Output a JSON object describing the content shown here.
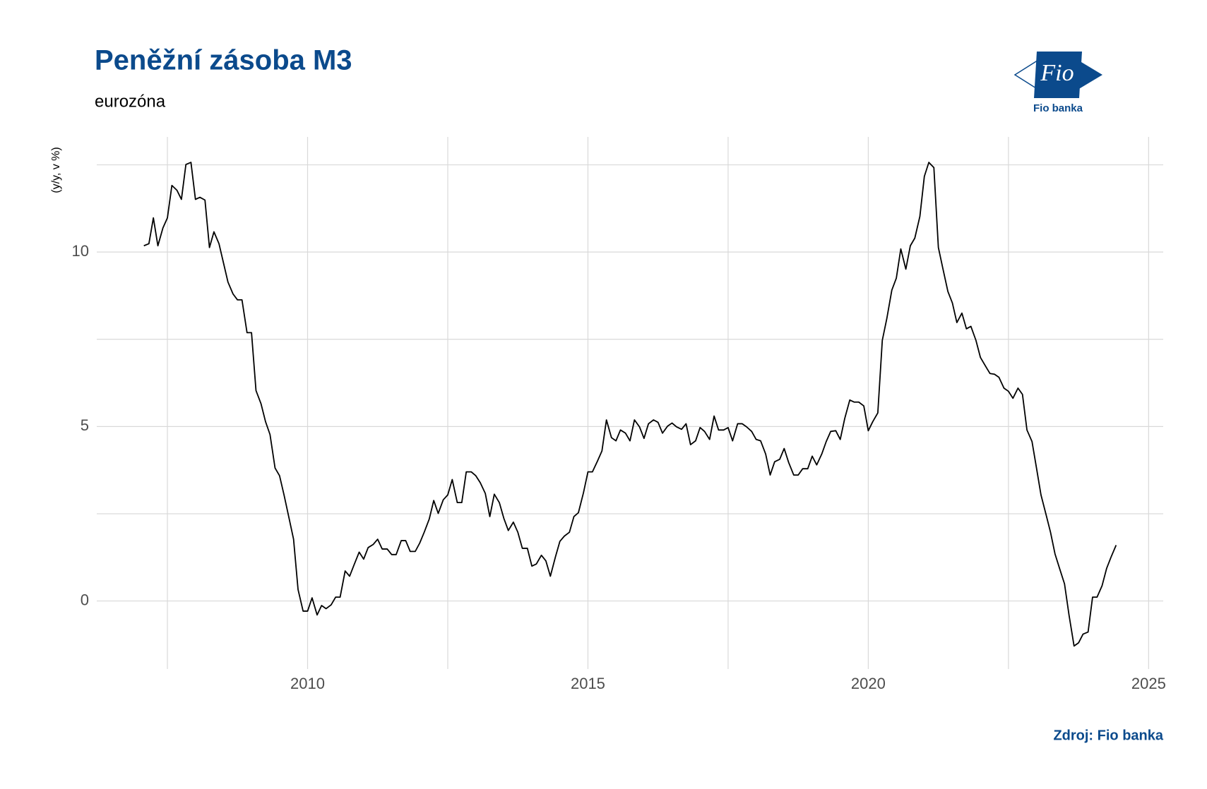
{
  "chart_data": {
    "type": "line",
    "title": "Peněžní zásoba M3",
    "subtitle": "eurozóna",
    "y_label": "(y/y, v %)",
    "source": "Zdroj: Fio banka",
    "logo_text": "Fio",
    "logo_caption": "Fio banka",
    "xlim": [
      2006.24,
      2025.26
    ],
    "ylim": [
      -1.95,
      13.3
    ],
    "xticks": [
      2010,
      2015,
      2020,
      2025
    ],
    "yticks": [
      0,
      5,
      10
    ],
    "grid": true,
    "series": [
      {
        "name": "M3",
        "color": "#000000",
        "x": [
          2007.08,
          2007.17,
          2007.25,
          2007.33,
          2007.42,
          2007.5,
          2007.58,
          2007.67,
          2007.75,
          2007.83,
          2007.92,
          2008.0,
          2008.08,
          2008.17,
          2008.25,
          2008.33,
          2008.42,
          2008.5,
          2008.58,
          2008.67,
          2008.75,
          2008.83,
          2008.92,
          2009.0,
          2009.08,
          2009.17,
          2009.25,
          2009.33,
          2009.42,
          2009.5,
          2009.58,
          2009.67,
          2009.75,
          2009.83,
          2009.92,
          2010.0,
          2010.08,
          2010.17,
          2010.25,
          2010.33,
          2010.42,
          2010.5,
          2010.58,
          2010.67,
          2010.75,
          2010.83,
          2010.92,
          2011.0,
          2011.08,
          2011.17,
          2011.25,
          2011.33,
          2011.42,
          2011.5,
          2011.58,
          2011.67,
          2011.75,
          2011.83,
          2011.92,
          2012.0,
          2012.08,
          2012.17,
          2012.25,
          2012.33,
          2012.42,
          2012.5,
          2012.58,
          2012.67,
          2012.75,
          2012.83,
          2012.92,
          2013.0,
          2013.08,
          2013.17,
          2013.25,
          2013.33,
          2013.42,
          2013.5,
          2013.58,
          2013.67,
          2013.75,
          2013.83,
          2013.92,
          2014.0,
          2014.08,
          2014.17,
          2014.25,
          2014.33,
          2014.42,
          2014.5,
          2014.58,
          2014.67,
          2014.75,
          2014.83,
          2014.92,
          2015.0,
          2015.08,
          2015.17,
          2015.25,
          2015.33,
          2015.42,
          2015.5,
          2015.58,
          2015.67,
          2015.75,
          2015.83,
          2015.92,
          2016.0,
          2016.08,
          2016.17,
          2016.25,
          2016.33,
          2016.42,
          2016.5,
          2016.58,
          2016.67,
          2016.75,
          2016.83,
          2016.92,
          2017.0,
          2017.08,
          2017.17,
          2017.25,
          2017.33,
          2017.42,
          2017.5,
          2017.58,
          2017.67,
          2017.75,
          2017.83,
          2017.92,
          2018.0,
          2018.08,
          2018.17,
          2018.25,
          2018.33,
          2018.42,
          2018.5,
          2018.58,
          2018.67,
          2018.75,
          2018.83,
          2018.92,
          2019.0,
          2019.08,
          2019.17,
          2019.25,
          2019.33,
          2019.42,
          2019.5,
          2019.58,
          2019.67,
          2019.75,
          2019.83,
          2019.92,
          2020.0,
          2020.08,
          2020.17,
          2020.25,
          2020.33,
          2020.42,
          2020.5,
          2020.58,
          2020.67,
          2020.75,
          2020.83,
          2020.92,
          2021.0,
          2021.08,
          2021.17,
          2021.25,
          2021.33,
          2021.42,
          2021.5,
          2021.58,
          2021.67,
          2021.75,
          2021.83,
          2021.92,
          2022.0,
          2022.08,
          2022.17,
          2022.25,
          2022.33,
          2022.42,
          2022.5,
          2022.58,
          2022.67,
          2022.75,
          2022.83,
          2022.92,
          2023.0,
          2023.08,
          2023.17,
          2023.25,
          2023.33,
          2023.42,
          2023.5,
          2023.58,
          2023.67,
          2023.75,
          2023.83,
          2023.92,
          2024.0,
          2024.08,
          2024.17,
          2024.25,
          2024.33,
          2024.42
        ],
        "values": [
          10.18,
          10.24,
          10.98,
          10.18,
          10.69,
          10.98,
          11.91,
          11.77,
          11.51,
          12.51,
          12.57,
          11.51,
          11.57,
          11.49,
          10.13,
          10.58,
          10.24,
          9.69,
          9.14,
          8.8,
          8.63,
          8.63,
          7.69,
          7.69,
          6.03,
          5.65,
          5.14,
          4.77,
          3.81,
          3.59,
          3.04,
          2.37,
          1.77,
          0.33,
          -0.29,
          -0.29,
          0.09,
          -0.4,
          -0.13,
          -0.22,
          -0.11,
          0.11,
          0.11,
          0.86,
          0.71,
          1.04,
          1.4,
          1.2,
          1.53,
          1.62,
          1.77,
          1.49,
          1.49,
          1.33,
          1.33,
          1.73,
          1.73,
          1.42,
          1.42,
          1.66,
          1.97,
          2.35,
          2.88,
          2.51,
          2.9,
          3.04,
          3.48,
          2.82,
          2.82,
          3.7,
          3.7,
          3.59,
          3.39,
          3.08,
          2.42,
          3.06,
          2.82,
          2.37,
          2.02,
          2.26,
          1.97,
          1.51,
          1.51,
          1.0,
          1.06,
          1.31,
          1.15,
          0.71,
          1.26,
          1.71,
          1.86,
          1.97,
          2.42,
          2.53,
          3.1,
          3.7,
          3.7,
          4.01,
          4.3,
          5.19,
          4.68,
          4.59,
          4.9,
          4.81,
          4.59,
          5.19,
          4.99,
          4.66,
          5.08,
          5.19,
          5.12,
          4.81,
          5.01,
          5.1,
          4.99,
          4.92,
          5.08,
          4.48,
          4.59,
          4.97,
          4.86,
          4.63,
          5.3,
          4.9,
          4.9,
          4.97,
          4.59,
          5.08,
          5.08,
          4.99,
          4.86,
          4.63,
          4.59,
          4.21,
          3.61,
          3.99,
          4.06,
          4.37,
          3.97,
          3.61,
          3.61,
          3.79,
          3.79,
          4.15,
          3.9,
          4.21,
          4.57,
          4.86,
          4.88,
          4.63,
          5.23,
          5.76,
          5.7,
          5.7,
          5.59,
          4.88,
          5.14,
          5.39,
          7.47,
          8.09,
          8.91,
          9.25,
          10.09,
          9.51,
          10.18,
          10.4,
          11.02,
          12.17,
          12.57,
          12.42,
          10.13,
          9.53,
          8.87,
          8.54,
          7.98,
          8.25,
          7.8,
          7.87,
          7.47,
          6.98,
          6.76,
          6.52,
          6.5,
          6.41,
          6.1,
          6.01,
          5.81,
          6.1,
          5.92,
          4.9,
          4.57,
          3.81,
          3.04,
          2.48,
          1.97,
          1.35,
          0.89,
          0.49,
          -0.4,
          -1.29,
          -1.2,
          -0.95,
          -0.89,
          0.11,
          0.11,
          0.44,
          0.93,
          1.26,
          1.6
        ]
      }
    ]
  }
}
